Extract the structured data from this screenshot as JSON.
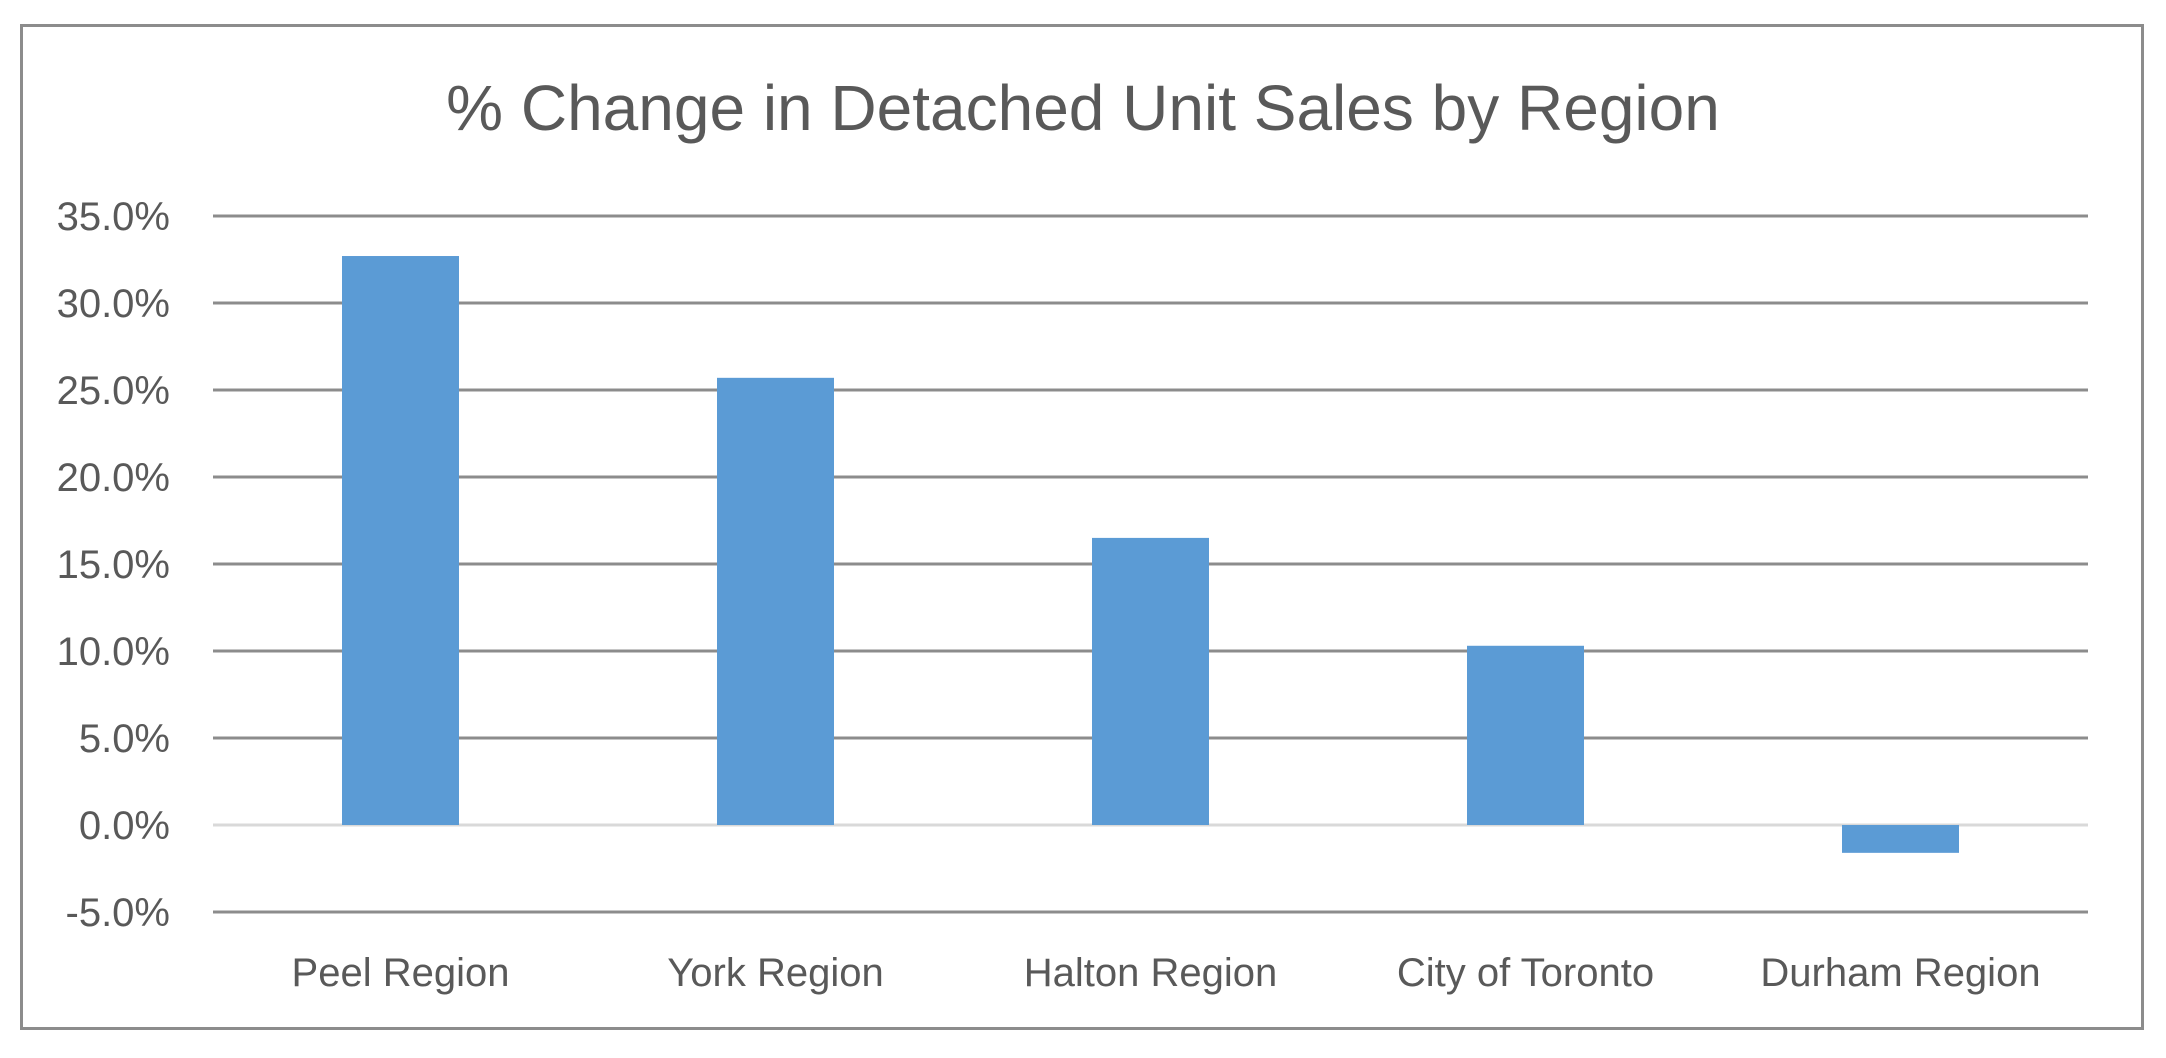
{
  "chart_data": {
    "type": "bar",
    "title": "% Change in Detached Unit Sales by Region",
    "xlabel": "",
    "ylabel": "",
    "categories": [
      "Peel Region",
      "York Region",
      "Halton Region",
      "City of Toronto",
      "Durham Region"
    ],
    "values": [
      32.7,
      25.7,
      16.5,
      10.3,
      -1.6
    ],
    "ylim": [
      -5.0,
      35.0
    ],
    "yticks": [
      -5.0,
      0.0,
      5.0,
      10.0,
      15.0,
      20.0,
      25.0,
      30.0,
      35.0
    ],
    "ytick_labels": [
      "-5.0%",
      "0.0%",
      "5.0%",
      "10.0%",
      "15.0%",
      "20.0%",
      "25.0%",
      "30.0%",
      "35.0%"
    ],
    "grid": true,
    "legend": "none",
    "colors": {
      "bar": "#5b9bd5",
      "gridline": "#8c8c8c",
      "zero_line": "#d9d9d9",
      "text": "#595959",
      "border": "#8c8c8c"
    }
  }
}
